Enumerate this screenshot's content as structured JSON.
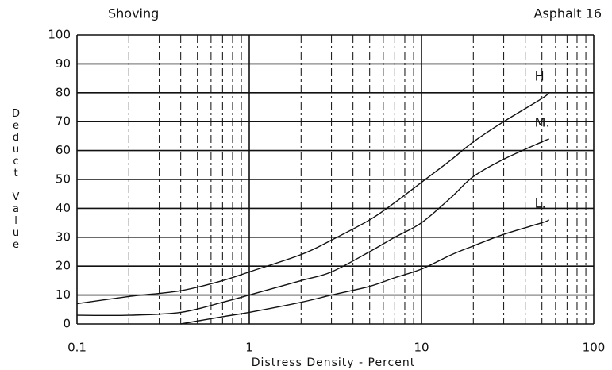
{
  "chart_data": {
    "type": "line",
    "title": "Shoving",
    "subtitle": "Asphalt 16",
    "x_label": "Distress Density - Percent",
    "y_label": "Deduct Value",
    "xscale": "log",
    "xlim": [
      0.1,
      100
    ],
    "xticks": [
      0.1,
      1,
      10,
      100
    ],
    "x_minor_ticks": [
      0.2,
      0.3,
      0.4,
      0.5,
      0.6,
      0.7,
      0.8,
      0.9,
      2,
      3,
      4,
      5,
      6,
      7,
      8,
      9,
      20,
      30,
      40,
      50,
      60,
      70,
      80,
      90
    ],
    "ylim": [
      0,
      100
    ],
    "yticks": [
      0,
      10,
      20,
      30,
      40,
      50,
      60,
      70,
      80,
      90,
      100
    ],
    "grid": true,
    "series": [
      {
        "name": "H",
        "color": "#111111",
        "x": [
          0.1,
          0.2,
          0.4,
          0.7,
          1,
          2,
          3,
          5,
          7,
          10,
          15,
          20,
          30,
          50,
          55
        ],
        "values": [
          7,
          9.5,
          11.5,
          15,
          18,
          24,
          29,
          36,
          42,
          49,
          57,
          63,
          70,
          78,
          80
        ]
      },
      {
        "name": "M.",
        "color": "#111111",
        "x": [
          0.1,
          0.2,
          0.4,
          0.7,
          1,
          2,
          3,
          5,
          7,
          10,
          15,
          20,
          30,
          50,
          55
        ],
        "values": [
          3,
          3,
          4,
          7.5,
          10,
          15,
          18,
          25,
          30,
          35,
          44,
          51,
          57,
          63,
          64
        ]
      },
      {
        "name": "L.",
        "color": "#111111",
        "x": [
          0.4,
          0.7,
          1,
          2,
          3,
          5,
          7,
          10,
          15,
          20,
          30,
          50,
          55
        ],
        "values": [
          0,
          2.5,
          4,
          7.5,
          10,
          13,
          16,
          19,
          24,
          27,
          31,
          35,
          36
        ]
      }
    ]
  }
}
